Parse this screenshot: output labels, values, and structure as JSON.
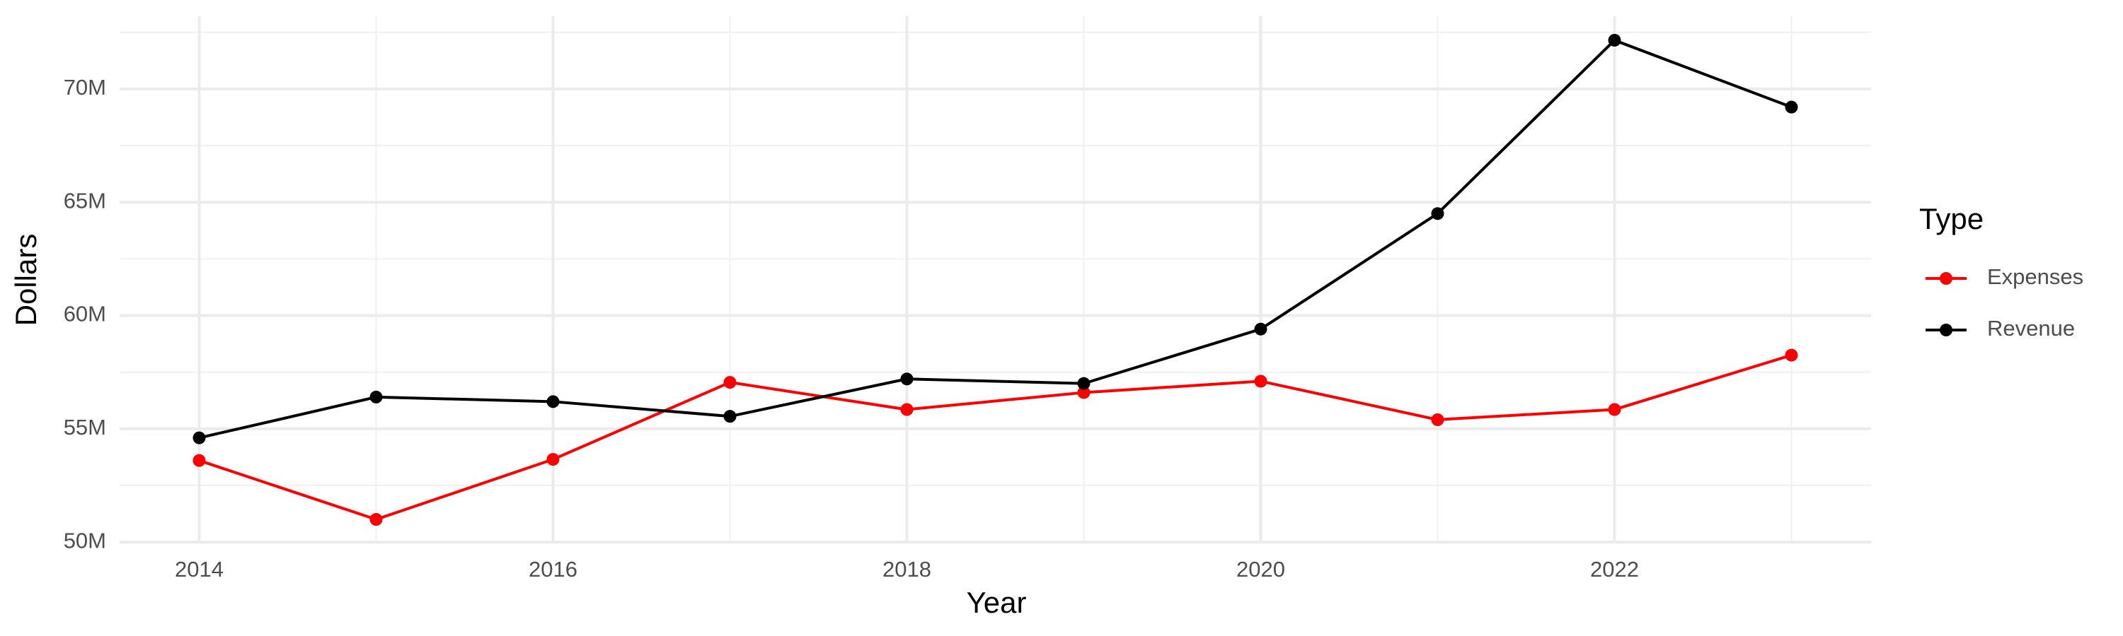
{
  "chart_data": {
    "type": "line",
    "x_label": "Year",
    "y_label": "Dollars",
    "legend_title": "Type",
    "legend_position": "right",
    "x": [
      2014,
      2015,
      2016,
      2017,
      2018,
      2019,
      2020,
      2021,
      2022,
      2023
    ],
    "series": [
      {
        "name": "Expenses",
        "color": "#ff0000",
        "values": [
          53600000,
          51000000,
          53650000,
          57050000,
          55850000,
          56600000,
          57100000,
          55400000,
          55850000,
          58250000
        ]
      },
      {
        "name": "Revenue",
        "color": "#000000",
        "values": [
          54600000,
          56400000,
          56200000,
          55550000,
          57200000,
          57000000,
          59400000,
          64500000,
          72150000,
          69200000
        ]
      }
    ],
    "xlim": [
      2013.55,
      2023.45
    ],
    "ylim": [
      49940000,
      73210000
    ],
    "xticks": [
      2014,
      2016,
      2018,
      2020,
      2022
    ],
    "xminorticks": [
      2015,
      2017,
      2019,
      2021,
      2023
    ],
    "yticks": [
      {
        "value": 50000000,
        "label": "50M"
      },
      {
        "value": 55000000,
        "label": "55M"
      },
      {
        "value": 60000000,
        "label": "60M"
      },
      {
        "value": 65000000,
        "label": "65M"
      },
      {
        "value": 70000000,
        "label": "70M"
      }
    ],
    "yminorticks": [
      52500000,
      57500000,
      62500000,
      67500000,
      72500000
    ],
    "grid": true
  }
}
